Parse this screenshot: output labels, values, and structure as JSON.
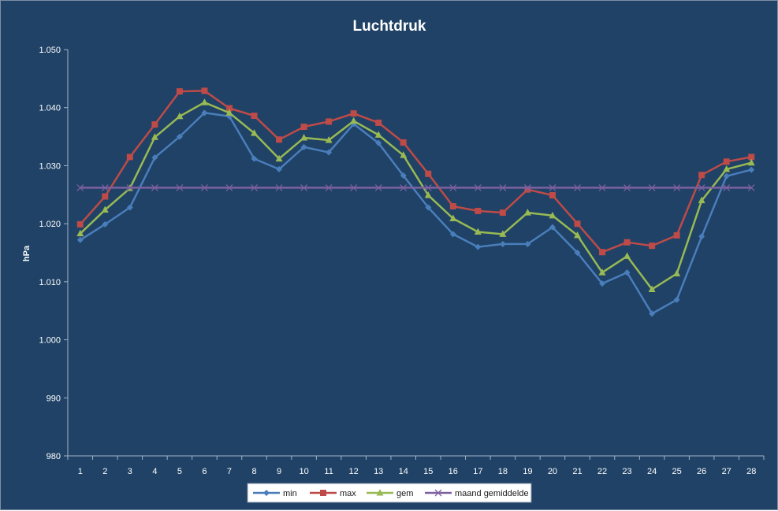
{
  "chart_data": {
    "type": "line",
    "title": "Luchtdruk",
    "xlabel": "",
    "ylabel": "hPa",
    "ylim": [
      980,
      1050
    ],
    "y_tick_step": 10,
    "y_tick_labels": [
      "980",
      "990",
      "1.000",
      "1.010",
      "1.020",
      "1.030",
      "1.040",
      "1.050"
    ],
    "x": [
      1,
      2,
      3,
      4,
      5,
      6,
      7,
      8,
      9,
      10,
      11,
      12,
      13,
      14,
      15,
      16,
      17,
      18,
      19,
      20,
      21,
      22,
      23,
      24,
      25,
      26,
      27,
      28
    ],
    "grid": false,
    "legend_position": "bottom",
    "series": [
      {
        "name": "min",
        "color": "#4a7ebb",
        "marker": "diamond",
        "values": [
          1017.2,
          1019.9,
          1022.8,
          1031.4,
          1035.0,
          1039.1,
          1038.5,
          1031.2,
          1029.4,
          1033.2,
          1032.3,
          1037.2,
          1033.9,
          1028.3,
          1022.8,
          1018.2,
          1016.0,
          1016.5,
          1016.5,
          1019.4,
          1015.0,
          1009.7,
          1011.6,
          1004.5,
          1006.9,
          1017.8,
          1028.2,
          1029.3
        ]
      },
      {
        "name": "max",
        "color": "#be4b48",
        "marker": "square",
        "values": [
          1019.9,
          1024.7,
          1031.5,
          1037.1,
          1042.8,
          1042.9,
          1039.9,
          1038.6,
          1034.5,
          1036.7,
          1037.6,
          1039.0,
          1037.4,
          1034.0,
          1028.6,
          1023.0,
          1022.2,
          1021.9,
          1025.9,
          1024.9,
          1020.0,
          1015.1,
          1016.8,
          1016.2,
          1018.0,
          1028.4,
          1030.7,
          1031.5
        ]
      },
      {
        "name": "gem",
        "color": "#98b954",
        "marker": "triangle",
        "values": [
          1018.3,
          1022.4,
          1026.1,
          1034.9,
          1038.5,
          1040.9,
          1039.1,
          1035.6,
          1031.2,
          1034.8,
          1034.4,
          1037.7,
          1035.3,
          1031.8,
          1024.9,
          1020.9,
          1018.6,
          1018.2,
          1021.9,
          1021.4,
          1018.0,
          1011.6,
          1014.4,
          1008.7,
          1011.4,
          1024.0,
          1029.4,
          1030.5
        ]
      },
      {
        "name": "maand gemiddelde",
        "color": "#7d60a0",
        "marker": "x",
        "values": [
          1026.2,
          1026.2,
          1026.2,
          1026.2,
          1026.2,
          1026.2,
          1026.2,
          1026.2,
          1026.2,
          1026.2,
          1026.2,
          1026.2,
          1026.2,
          1026.2,
          1026.2,
          1026.2,
          1026.2,
          1026.2,
          1026.2,
          1026.2,
          1026.2,
          1026.2,
          1026.2,
          1026.2,
          1026.2,
          1026.2,
          1026.2,
          1026.2
        ]
      }
    ]
  }
}
